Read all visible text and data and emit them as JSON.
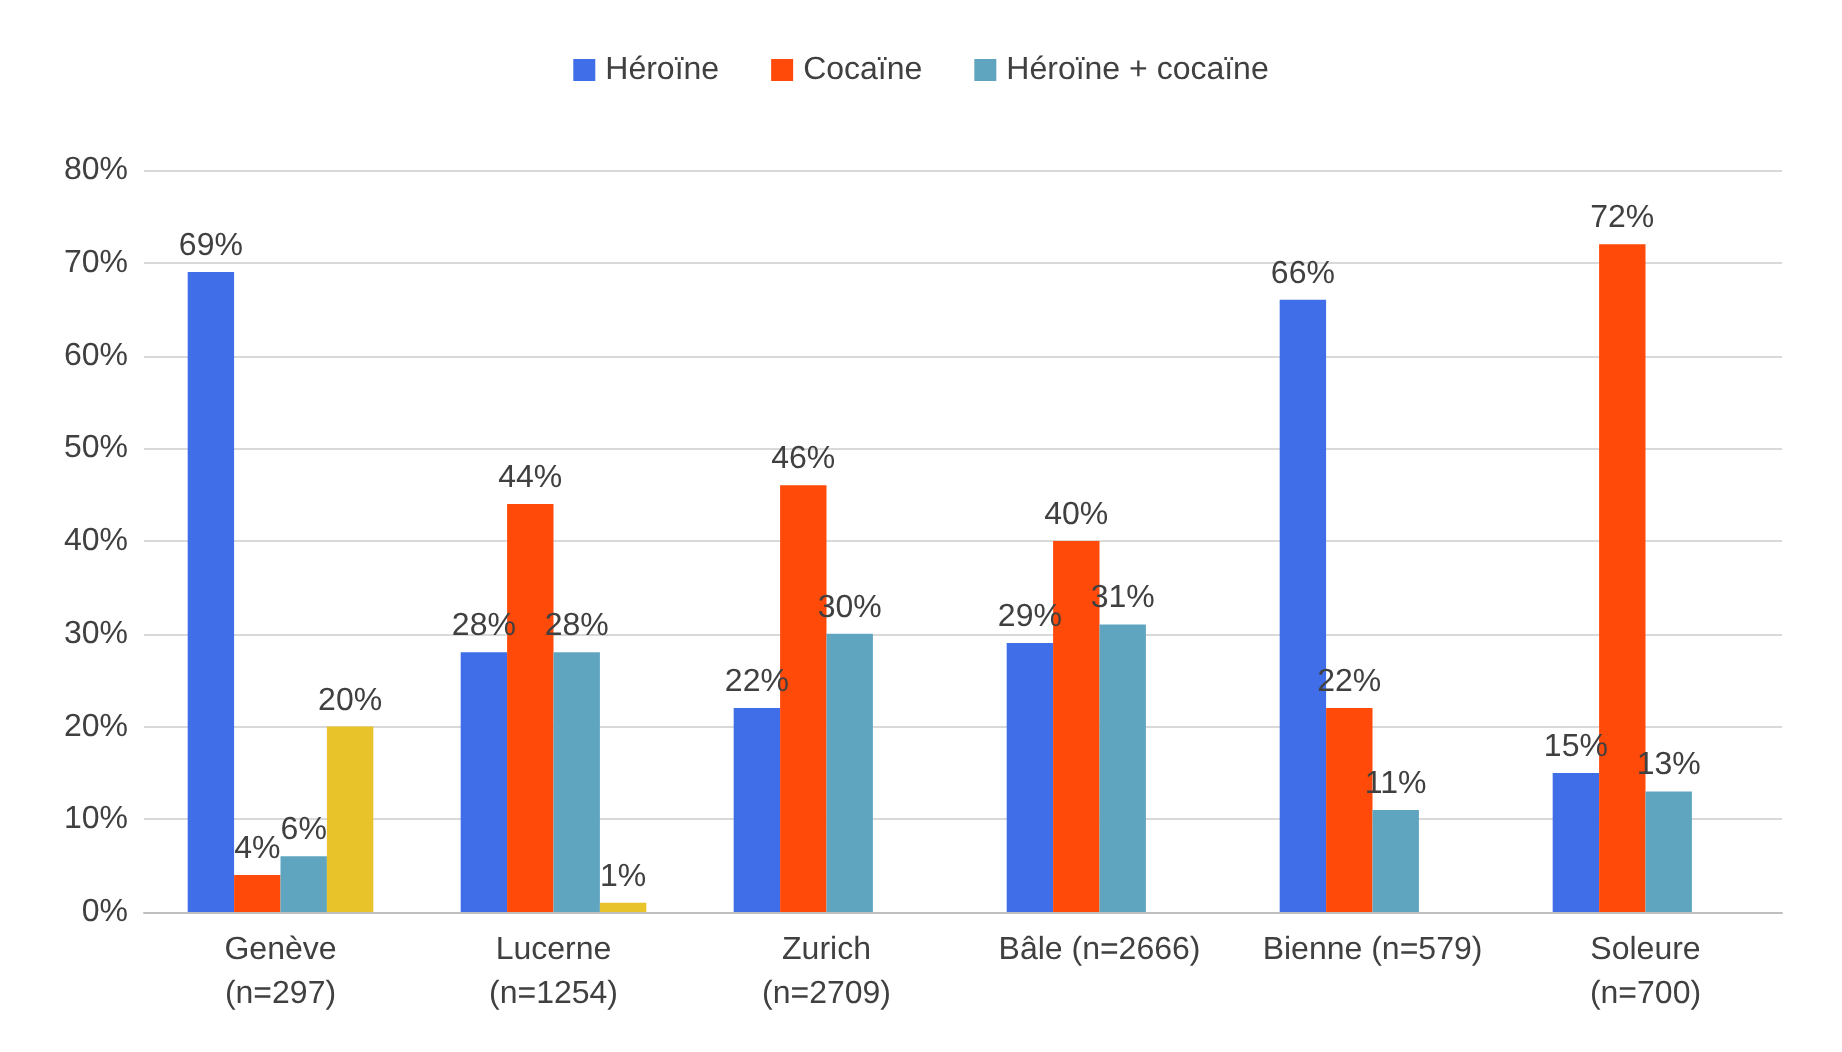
{
  "chart_data": {
    "type": "bar",
    "categories": [
      "Genève\n(n=297)",
      "Lucerne\n(n=1254)",
      "Zurich\n(n=2709)",
      "Bâle (n=2666)",
      "Bienne (n=579)",
      "Soleure\n(n=700)"
    ],
    "series": [
      {
        "name": "Héroïne",
        "color": "#3f6ee8",
        "values": [
          69,
          28,
          22,
          29,
          66,
          15
        ],
        "value_labels": [
          "69%",
          "28%",
          "22%",
          "29%",
          "66%",
          "15%"
        ]
      },
      {
        "name": "Cocaïne",
        "color": "#ff4a0a",
        "values": [
          4,
          44,
          46,
          40,
          22,
          72
        ],
        "value_labels": [
          "4%",
          "44%",
          "46%",
          "40%",
          "22%",
          "72%"
        ]
      },
      {
        "name": "Héroïne + cocaïne",
        "color": "#5fa5bf",
        "values": [
          6,
          28,
          30,
          31,
          11,
          13
        ],
        "value_labels": [
          "6%",
          "28%",
          "30%",
          "31%",
          "11%",
          "13%"
        ]
      },
      {
        "color": "#e8c42a",
        "values": [
          20,
          1,
          null,
          null,
          null,
          null
        ],
        "value_labels": [
          "20%",
          "1%",
          null,
          null,
          null,
          null
        ]
      }
    ],
    "ylim": [
      0,
      80
    ],
    "yticks": [
      {
        "value": 0,
        "label": "0%"
      },
      {
        "value": 10,
        "label": "10%"
      },
      {
        "value": 20,
        "label": "20%"
      },
      {
        "value": 30,
        "label": "30%"
      },
      {
        "value": 40,
        "label": "40%"
      },
      {
        "value": 50,
        "label": "50%"
      },
      {
        "value": 60,
        "label": "60%"
      },
      {
        "value": 70,
        "label": "70%"
      },
      {
        "value": 80,
        "label": "80%"
      }
    ],
    "grid": "y",
    "legend": "top"
  }
}
